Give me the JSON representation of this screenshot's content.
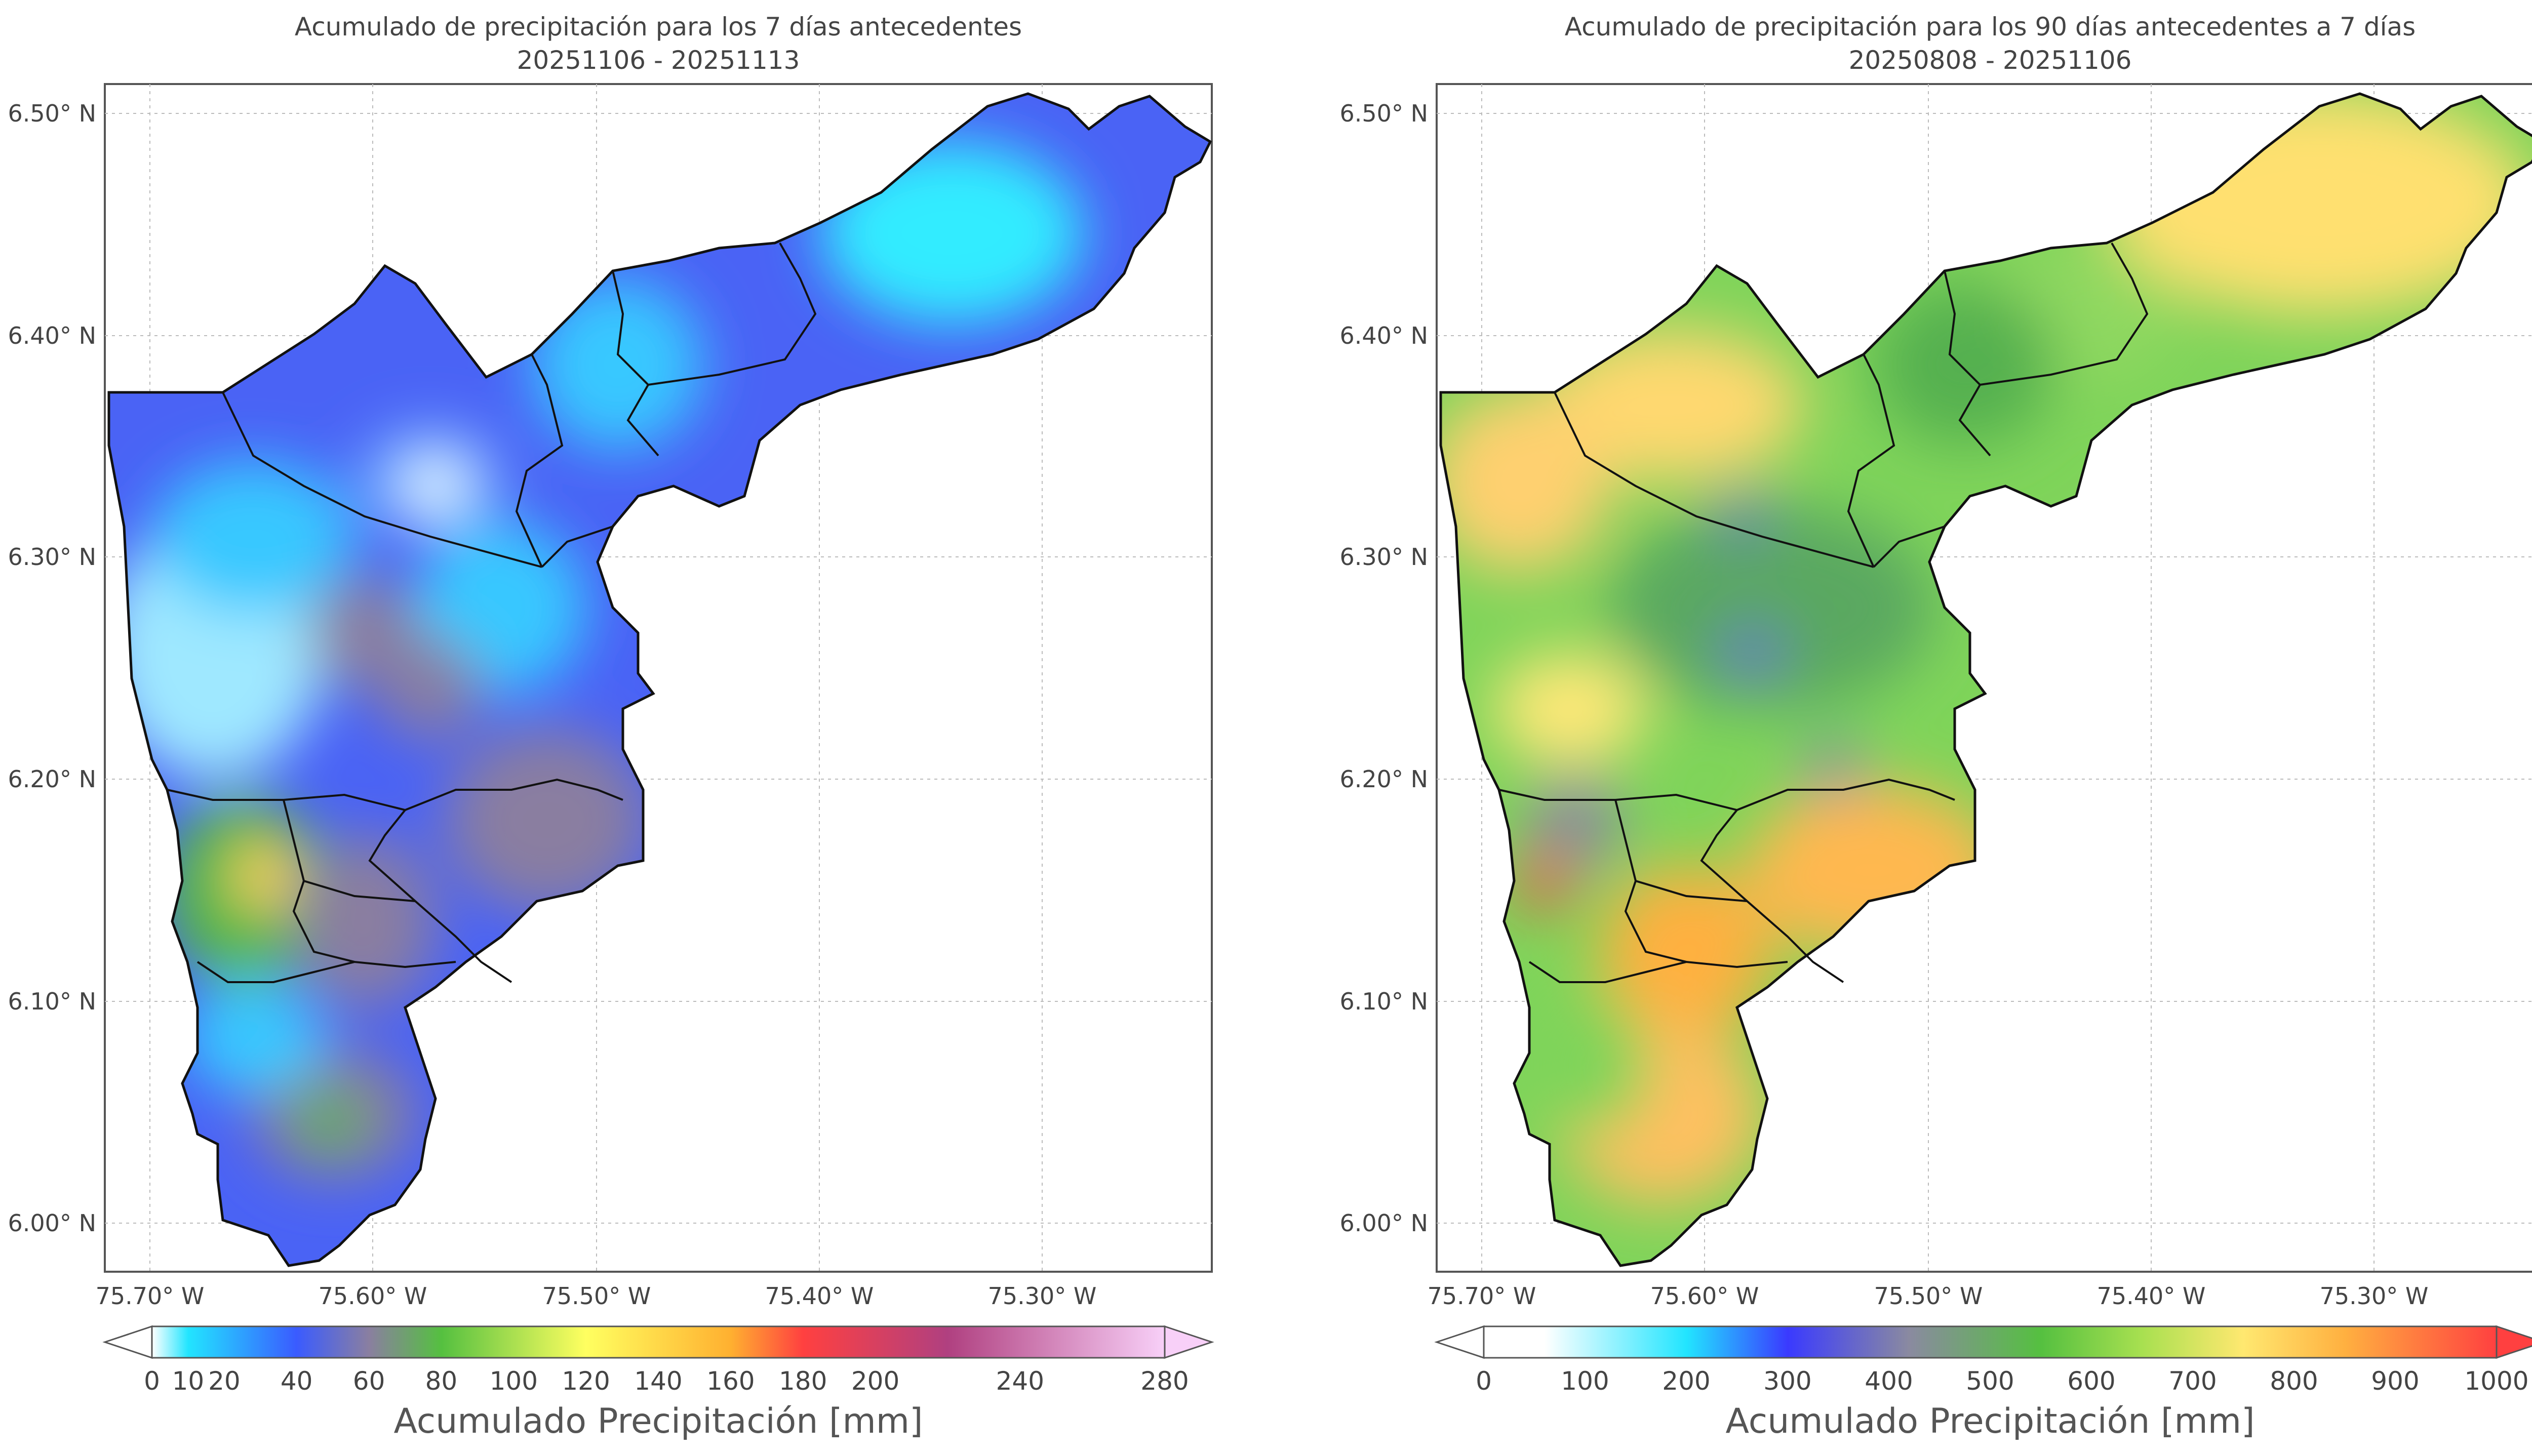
{
  "panels": [
    {
      "title_line1": "Acumulado de precipitación para los 7 días antecedentes",
      "title_line2": "20251106 - 20251113",
      "lon_ticks": [
        "75.70° W",
        "75.60° W",
        "75.50° W",
        "75.40° W",
        "75.30° W"
      ],
      "lat_ticks": [
        "6.50° N",
        "6.40° N",
        "6.30° N",
        "6.20° N",
        "6.10° N",
        "6.00° N"
      ],
      "colorbar": {
        "label": "Acumulado Precipitación [mm]",
        "ticks": [
          "0",
          "10",
          "20",
          "40",
          "60",
          "80",
          "100",
          "120",
          "140",
          "160",
          "180",
          "200",
          "240",
          "280"
        ],
        "tick_values": [
          0,
          10,
          20,
          40,
          60,
          80,
          100,
          120,
          140,
          160,
          180,
          200,
          240,
          280
        ],
        "min": 0,
        "max": 280,
        "stops": [
          "#ffffff",
          "#22e5ff",
          "#3a5bff",
          "#8a7fa0",
          "#55c040",
          "#ffff60",
          "#ffb030",
          "#ff4040",
          "#b04080",
          "#f8d0f8"
        ],
        "stop_values": [
          0,
          10,
          40,
          60,
          80,
          120,
          160,
          180,
          220,
          280
        ],
        "extend": "both"
      },
      "dominant_value_range_mm": [
        20,
        80
      ]
    },
    {
      "title_line1": "Acumulado de precipitación para los 90 días antecedentes a 7 días",
      "title_line2": "20250808 - 20251106",
      "lon_ticks": [
        "75.70° W",
        "75.60° W",
        "75.50° W",
        "75.40° W",
        "75.30° W"
      ],
      "lat_ticks": [
        "6.50° N",
        "6.40° N",
        "6.30° N",
        "6.20° N",
        "6.10° N",
        "6.00° N"
      ],
      "colorbar": {
        "label": "Acumulado Precipitación [mm]",
        "ticks": [
          "0",
          "100",
          "200",
          "300",
          "400",
          "500",
          "600",
          "700",
          "800",
          "900",
          "1000"
        ],
        "tick_values": [
          0,
          100,
          200,
          300,
          400,
          500,
          600,
          700,
          800,
          900,
          1000
        ],
        "min": 0,
        "max": 1000,
        "stops": [
          "#ffffff",
          "#ffffff",
          "#22e5ff",
          "#3a3aff",
          "#8a8aa0",
          "#55c040",
          "#a8e050",
          "#ffe870",
          "#ffb040",
          "#ff4040"
        ],
        "stop_values": [
          0,
          60,
          200,
          300,
          420,
          550,
          650,
          750,
          850,
          1000
        ],
        "extend": "both"
      },
      "dominant_value_range_mm": [
        500,
        850
      ]
    }
  ]
}
